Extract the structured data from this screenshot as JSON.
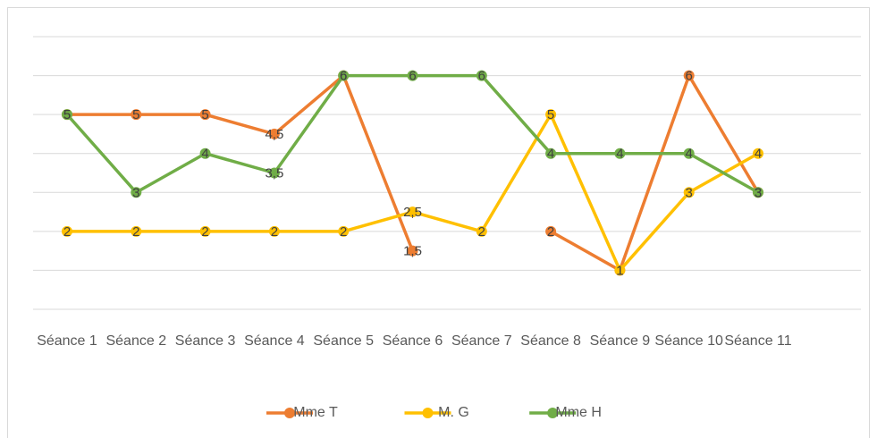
{
  "chart_data": {
    "type": "line",
    "categories": [
      "Séance 1",
      "Séance 2",
      "Séance 3",
      "Séance 4",
      "Séance 5",
      "Séance 6",
      "Séance 7",
      "Séance 8",
      "Séance 9",
      "Séance 10",
      "Séance 11"
    ],
    "series": [
      {
        "name": "Mme T",
        "color": "#ED7D31",
        "values": [
          5,
          5,
          5,
          4.5,
          6,
          1.5,
          null,
          2,
          1,
          6,
          3
        ],
        "value_labels": [
          "5",
          "5",
          "5",
          "4,5",
          "6",
          "1,5",
          null,
          "2",
          "1",
          "6",
          "3"
        ]
      },
      {
        "name": "M. G",
        "color": "#FFC000",
        "values": [
          2,
          2,
          2,
          2,
          2,
          2.5,
          2,
          5,
          1,
          3,
          4
        ],
        "value_labels": [
          "2",
          "2",
          "2",
          "2",
          "2",
          "2,5",
          "2",
          "5",
          "1",
          "3",
          "4"
        ]
      },
      {
        "name": "Mme H",
        "color": "#70AD47",
        "values": [
          5,
          3,
          4,
          3.5,
          6,
          6,
          6,
          4,
          4,
          4,
          3
        ],
        "value_labels": [
          "5",
          "3",
          "4",
          "3,5",
          "6",
          "6",
          "6",
          "4",
          "4",
          "4",
          "3"
        ]
      }
    ],
    "ylim": [
      0,
      7
    ],
    "yticks": [
      0,
      1,
      2,
      3,
      4,
      5,
      6,
      7
    ],
    "grid": true,
    "legend": "bottom"
  }
}
